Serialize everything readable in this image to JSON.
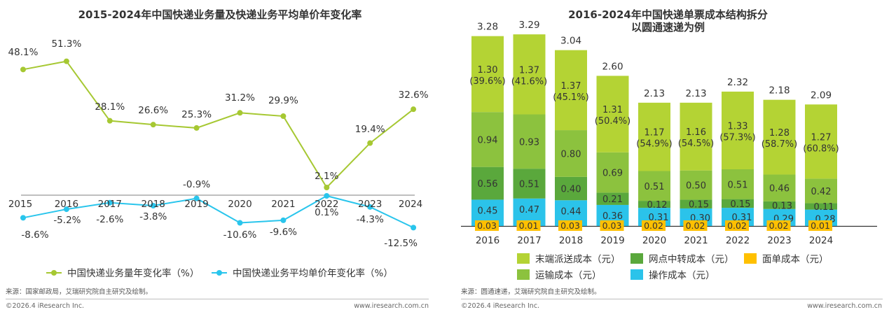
{
  "left": {
    "title": "2015-2024年中国快递业务量及快递业务平均单价年变化率",
    "source": "来源：国家邮政局，艾瑞研究院自主研究及绘制。",
    "footer_left": "©2026.4 iResearch Inc.",
    "footer_right": "www.iresearch.com.cn",
    "colors": {
      "volume": "#a6c832",
      "price": "#29c5ec",
      "axis": "#7f7f7f"
    },
    "legend": [
      "中国快递业务量年变化率（%）",
      "中国快递业务平均单价年变化率（%）"
    ]
  },
  "right": {
    "title_line1": "2016-2024年中国快递单票成本结构拆分",
    "title_line2": "以圆通速递为例",
    "source": "来源：圆通速递，艾瑞研究院自主研究及绘制。",
    "footer_left": "©2026.4 iResearch Inc.",
    "footer_right": "www.iresearch.com.cn",
    "colors": {
      "last_mile": "#b4d334",
      "transport": "#8cc23e",
      "transfer": "#5aa83c",
      "operation": "#2bc3ea",
      "waybill": "#ffc000"
    },
    "legend": [
      "末端派送成本（元）",
      "网点中转成本（元）",
      "面单成本（元）",
      "运输成本（元）",
      "操作成本（元）"
    ]
  },
  "chart_data": [
    {
      "type": "line",
      "title": "2015-2024年中国快递业务量及快递业务平均单价年变化率",
      "x": [
        "2015",
        "2016",
        "2017",
        "2018",
        "2019",
        "2020",
        "2021",
        "2022",
        "2023",
        "2024"
      ],
      "series": [
        {
          "name": "中国快递业务量年变化率（%）",
          "values": [
            48.1,
            51.3,
            28.1,
            26.6,
            25.3,
            31.2,
            29.9,
            2.1,
            19.4,
            32.6
          ],
          "labels": [
            "48.1%",
            "51.3%",
            "28.1%",
            "26.6%",
            "25.3%",
            "31.2%",
            "29.9%",
            "2.1%",
            "19.4%",
            "32.6%"
          ]
        },
        {
          "name": "中国快递业务平均单价年变化率（%）",
          "values": [
            -8.6,
            -5.2,
            -2.6,
            -3.8,
            -0.9,
            -10.6,
            -9.6,
            0.1,
            -4.3,
            -12.5
          ],
          "labels": [
            "-8.6%",
            "-5.2%",
            "-2.6%",
            "-3.8%",
            "-0.9%",
            "-10.6%",
            "-9.6%",
            "0.1%",
            "-4.3%",
            "-12.5%"
          ]
        }
      ],
      "legend_position": "bottom",
      "grid": false
    },
    {
      "type": "bar",
      "stacked": true,
      "title": "2016-2024年中国快递单票成本结构拆分",
      "subtitle": "以圆通速递为例",
      "categories": [
        "2016",
        "2017",
        "2018",
        "2019",
        "2020",
        "2021",
        "2022",
        "2023",
        "2024"
      ],
      "totals": [
        "3.28",
        "3.29",
        "3.04",
        "2.60",
        "2.13",
        "2.13",
        "2.32",
        "2.18",
        "2.09"
      ],
      "series": [
        {
          "name": "面单成本（元）",
          "values": [
            0.03,
            0.01,
            0.03,
            0.03,
            0.02,
            0.02,
            0.02,
            0.02,
            0.01
          ],
          "labels": [
            "0.03",
            "0.01",
            "0.03",
            "0.03",
            "0.02",
            "0.02",
            "0.02",
            "0.02",
            "0.01"
          ]
        },
        {
          "name": "操作成本（元）",
          "values": [
            0.45,
            0.47,
            0.44,
            0.36,
            0.31,
            0.3,
            0.31,
            0.29,
            0.28
          ],
          "labels": [
            "0.45",
            "0.47",
            "0.44",
            "0.36",
            "0.31",
            "0.30",
            "0.31",
            "0.29",
            "0.28"
          ]
        },
        {
          "name": "网点中转成本（元）",
          "values": [
            0.56,
            0.51,
            0.4,
            0.21,
            0.12,
            0.15,
            0.15,
            0.13,
            0.11
          ],
          "labels": [
            "0.56",
            "0.51",
            "0.40",
            "0.21",
            "0.12",
            "0.15",
            "0.15",
            "0.13",
            "0.11"
          ]
        },
        {
          "name": "运输成本（元）",
          "values": [
            0.94,
            0.93,
            0.8,
            0.69,
            0.51,
            0.5,
            0.51,
            0.46,
            0.42
          ],
          "labels": [
            "0.94",
            "0.93",
            "0.80",
            "0.69",
            "0.51",
            "0.50",
            "0.51",
            "0.46",
            "0.42"
          ]
        },
        {
          "name": "末端派送成本（元）",
          "values": [
            1.3,
            1.37,
            1.37,
            1.31,
            1.17,
            1.16,
            1.33,
            1.28,
            1.27
          ],
          "labels": [
            "1.30",
            "1.37",
            "1.37",
            "1.31",
            "1.17",
            "1.16",
            "1.33",
            "1.28",
            "1.27"
          ],
          "share_labels": [
            "(39.6%)",
            "(41.6%)",
            "(45.1%)",
            "(50.4%)",
            "(54.9%)",
            "(54.5%)",
            "(57.3%)",
            "(58.7%)",
            "(60.8%)"
          ]
        }
      ],
      "legend_position": "bottom",
      "grid": false
    }
  ]
}
